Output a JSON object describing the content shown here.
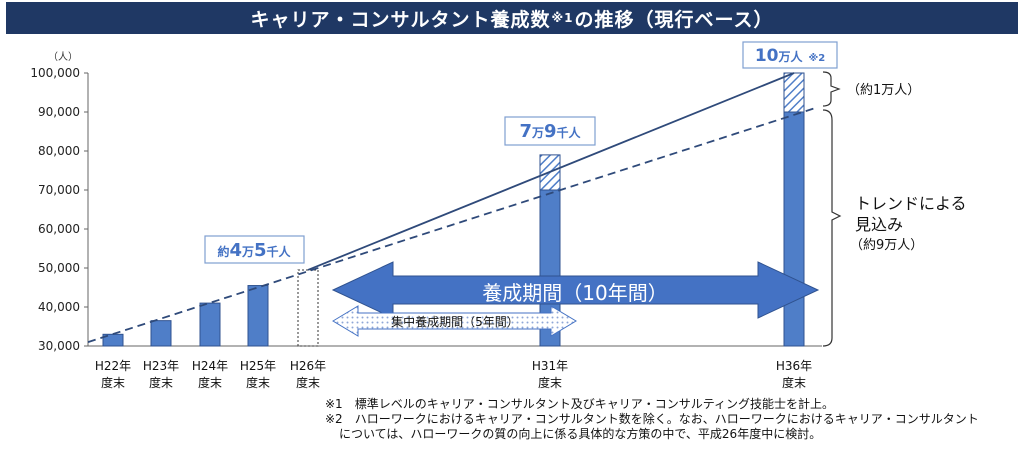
{
  "title": {
    "main": "キャリア・コンサルタント養成数",
    "mark": "※1",
    "rest": "の推移（現行ベース）"
  },
  "colors": {
    "title_bg": "#1f3864",
    "bar": "#4f7ec8",
    "bar_edge": "#2f528f",
    "line": "#2f4a7a",
    "arrow": "#4472c4",
    "label": "#4472c4"
  },
  "chart_data": {
    "type": "bar",
    "yunit": "（人）",
    "ylim": [
      30000,
      100000
    ],
    "yticks": [
      "30,000",
      "40,000",
      "50,000",
      "60,000",
      "70,000",
      "80,000",
      "90,000",
      "100,000"
    ],
    "categories": [
      {
        "l1": "H22年",
        "l2": "度末"
      },
      {
        "l1": "H23年",
        "l2": "度末"
      },
      {
        "l1": "H24年",
        "l2": "度末"
      },
      {
        "l1": "H25年",
        "l2": "度末"
      },
      {
        "l1": "H26年",
        "l2": "度末"
      },
      {
        "l1": "H31年",
        "l2": "度末"
      },
      {
        "l1": "H36年",
        "l2": "度末"
      }
    ],
    "values": [
      33000,
      36500,
      41000,
      45500,
      49500,
      70000,
      90000
    ],
    "upper": [
      null,
      null,
      null,
      null,
      null,
      79000,
      100000
    ],
    "estimated": [
      false,
      false,
      false,
      false,
      true,
      false,
      false
    ],
    "trend_solid": {
      "from": 49500,
      "to": 100000
    },
    "trend_dashed": {
      "from": 31000,
      "to": 91000
    }
  },
  "labels": {
    "h25": {
      "a": "約",
      "b": "4",
      "c": "万",
      "d": "5",
      "e": "千人"
    },
    "h31": {
      "b": "7",
      "c": "万",
      "d": "9",
      "e": "千人"
    },
    "h36": {
      "a": "10",
      "b": "万人",
      "mark": "※2"
    }
  },
  "arrows": {
    "main": "養成期間（10年間）",
    "sub": "集中養成期間（5年間）"
  },
  "side": {
    "top": "（約1万人）",
    "trend1": "トレンドによる",
    "trend2": "見込み",
    "trend3": "（約9万人）"
  },
  "notes": {
    "n1": "※1　標準レベルのキャリア・コンサルタント及びキャリア・コンサルティング技能士を計上。",
    "n2": "※2　ハローワークにおけるキャリア・コンサルタント数を除く。なお、ハローワークにおけるキャリア・コンサルタント",
    "n3": "については、ハローワークの質の向上に係る具体的な方策の中で、平成26年度中に検討。"
  }
}
